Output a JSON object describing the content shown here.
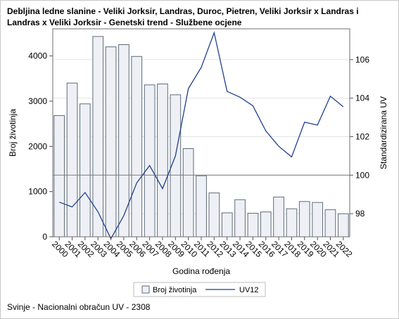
{
  "title_lines": [
    "Debljina ledne slanine - Veliki Jorksir, Landras, Duroc, Pietren, Veliki Jorksir x Landras i",
    "Landras x Veliki Jorksir - Genetski trend - Službene ocjene"
  ],
  "footer": "Svinje - Nacionalni obračun UV - 2308",
  "chart_data": {
    "type": "bar",
    "title": "Debljina ledne slanine - Veliki Jorksir, Landras, Duroc, Pietren, Veliki Jorksir x Landras i Landras x Veliki Jorksir - Genetski trend - Službene ocjene",
    "xlabel": "Godina rođenja",
    "ylabel": "Broj životinja",
    "y2label": "Standardizirana UV",
    "categories": [
      "2000",
      "2001",
      "2002",
      "2003",
      "2004",
      "2005",
      "2006",
      "2007",
      "2008",
      "2009",
      "2010",
      "2011",
      "2012",
      "2013",
      "2014",
      "2015",
      "2016",
      "2017",
      "2018",
      "2019",
      "2020",
      "2021",
      "2022"
    ],
    "ylim": [
      0,
      4600
    ],
    "y_ticks": [
      0,
      1000,
      2000,
      3000,
      4000
    ],
    "y2lim": [
      96.8,
      107.6
    ],
    "y2_ticks": [
      98,
      100,
      102,
      104,
      106
    ],
    "reference_line_y2": 100,
    "grid": true,
    "legend_position": "bottom",
    "series": [
      {
        "name": "Broj životinja",
        "type": "bar",
        "axis": "left",
        "color": "#eef0f5",
        "edge_color": "#5f6b7a",
        "values": [
          2680,
          3400,
          2940,
          4430,
          4200,
          4250,
          3990,
          3360,
          3380,
          3140,
          1950,
          1350,
          970,
          530,
          820,
          520,
          550,
          880,
          620,
          780,
          760,
          600,
          510
        ]
      },
      {
        "name": "UV12",
        "type": "line",
        "axis": "right",
        "color": "#1f3f8f",
        "values": [
          98.6,
          98.35,
          99.1,
          98.1,
          96.7,
          97.9,
          99.6,
          100.5,
          99.3,
          101.0,
          104.5,
          105.6,
          107.4,
          104.35,
          104.05,
          103.6,
          102.3,
          101.5,
          100.95,
          102.75,
          102.6,
          104.1,
          103.55
        ]
      }
    ]
  }
}
